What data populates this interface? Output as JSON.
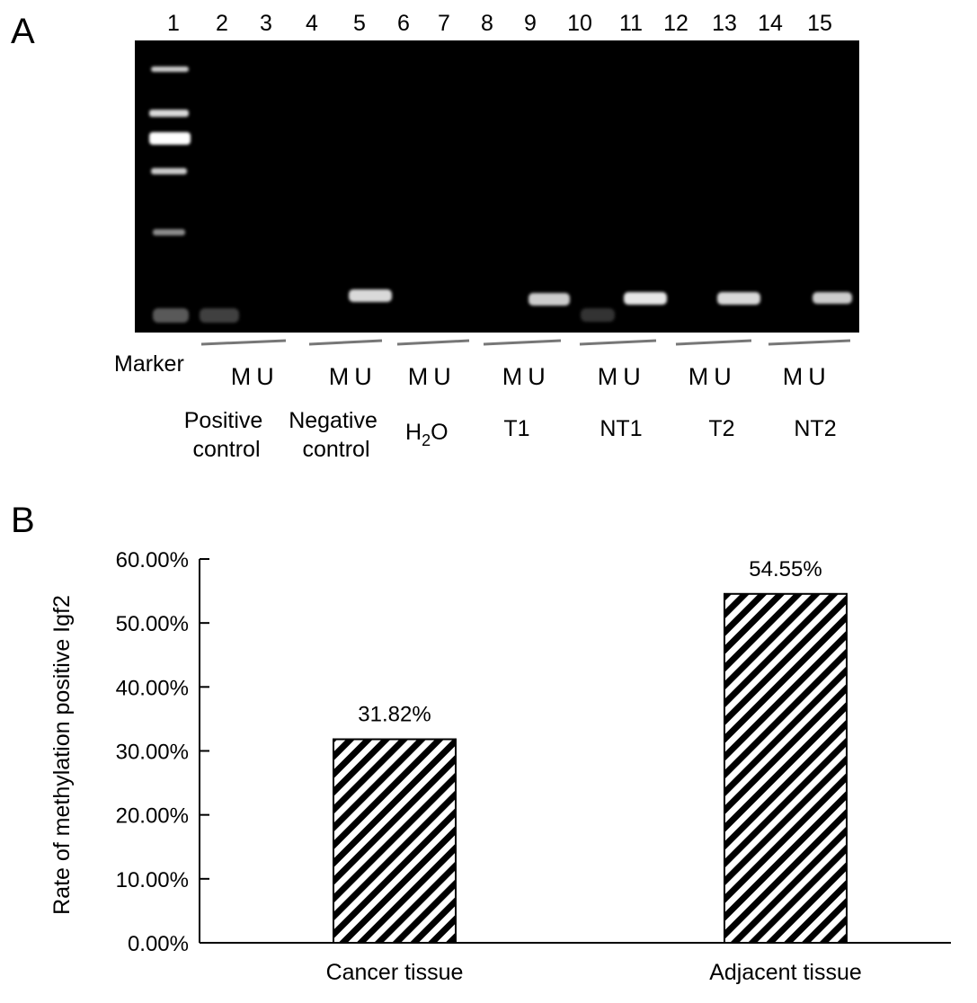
{
  "panels": {
    "a_label": "A",
    "b_label": "B"
  },
  "gel": {
    "lane_numbers": [
      "1",
      "2",
      "3",
      "4",
      "5",
      "6",
      "7",
      "8",
      "9",
      "10",
      "11",
      "12",
      "13",
      "14",
      "15"
    ],
    "marker_label": "Marker",
    "pair_letters": [
      "M",
      "U"
    ],
    "groups": [
      {
        "line1": "Positive",
        "line2": "control"
      },
      {
        "line1": "Negative",
        "line2": "control"
      },
      {
        "line1": "H",
        "sub": "2",
        "line1_after": "O"
      },
      {
        "line1": "T1"
      },
      {
        "line1": "NT1"
      },
      {
        "line1": "T2"
      },
      {
        "line1": "NT2"
      }
    ],
    "colors": {
      "background": "#000000",
      "band": "#ffffff"
    }
  },
  "chart_data": {
    "type": "bar",
    "categories": [
      "Cancer tissue",
      "Adjacent tissue"
    ],
    "values": [
      31.82,
      54.55
    ],
    "value_labels": [
      "31.82%",
      "54.55%"
    ],
    "title": "",
    "xlabel": "",
    "ylabel": "Rate of methylation positive Igf2",
    "ylim": [
      0,
      60
    ],
    "yticks": [
      "0.00%",
      "10.00%",
      "20.00%",
      "30.00%",
      "40.00%",
      "50.00%",
      "60.00%"
    ],
    "bar_fill": "diagonal-hatch",
    "grid": false,
    "legend": "none"
  }
}
